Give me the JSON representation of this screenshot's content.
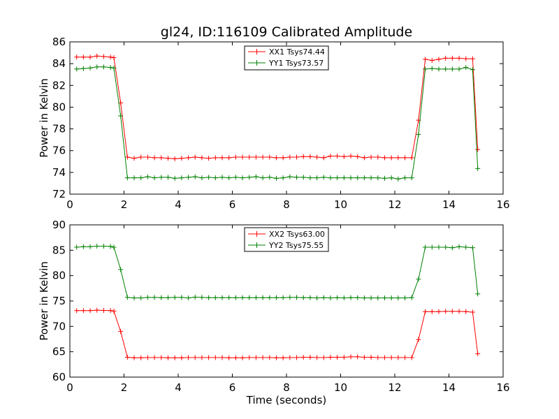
{
  "chart_data": [
    {
      "type": "line",
      "title": "gl24, ID:116109 Calibrated Amplitude",
      "xlabel": "",
      "ylabel": "Power in Kelvin",
      "xlim": [
        0,
        16
      ],
      "ylim": [
        72,
        86
      ],
      "xticks": [
        0,
        2,
        4,
        6,
        8,
        10,
        12,
        14,
        16
      ],
      "yticks": [
        72,
        74,
        76,
        78,
        80,
        82,
        84,
        86
      ],
      "legend_position": "top-center",
      "x": [
        0.25,
        0.5,
        0.75,
        1.0,
        1.25,
        1.5,
        1.625,
        1.875,
        2.125,
        2.375,
        2.625,
        2.875,
        3.125,
        3.375,
        3.625,
        3.875,
        4.125,
        4.375,
        4.625,
        4.875,
        5.125,
        5.375,
        5.625,
        5.875,
        6.125,
        6.375,
        6.625,
        6.875,
        7.125,
        7.375,
        7.625,
        7.875,
        8.125,
        8.375,
        8.625,
        8.875,
        9.125,
        9.375,
        9.625,
        9.875,
        10.125,
        10.375,
        10.625,
        10.875,
        11.125,
        11.375,
        11.625,
        11.875,
        12.125,
        12.375,
        12.625,
        12.875,
        13.125,
        13.375,
        13.625,
        13.875,
        14.125,
        14.375,
        14.625,
        14.875,
        15.0625
      ],
      "series": [
        {
          "name": "XX1 Tsys74.44",
          "color": "#ff0000",
          "values": [
            84.6,
            84.6,
            84.6,
            84.7,
            84.65,
            84.6,
            84.55,
            80.4,
            75.4,
            75.3,
            75.4,
            75.4,
            75.35,
            75.35,
            75.3,
            75.25,
            75.3,
            75.35,
            75.4,
            75.35,
            75.3,
            75.35,
            75.35,
            75.35,
            75.4,
            75.4,
            75.4,
            75.4,
            75.4,
            75.4,
            75.35,
            75.35,
            75.4,
            75.4,
            75.45,
            75.45,
            75.4,
            75.35,
            75.5,
            75.5,
            75.45,
            75.5,
            75.45,
            75.35,
            75.4,
            75.4,
            75.35,
            75.35,
            75.35,
            75.35,
            75.35,
            78.8,
            84.4,
            84.3,
            84.4,
            84.5,
            84.5,
            84.5,
            84.45,
            84.45,
            76.1
          ]
        },
        {
          "name": "YY1 Tsys73.57",
          "color": "#008000",
          "values": [
            83.5,
            83.55,
            83.6,
            83.7,
            83.7,
            83.65,
            83.6,
            79.2,
            73.5,
            73.5,
            73.5,
            73.6,
            73.5,
            73.55,
            73.55,
            73.45,
            73.5,
            73.55,
            73.6,
            73.5,
            73.55,
            73.5,
            73.55,
            73.5,
            73.55,
            73.5,
            73.55,
            73.6,
            73.5,
            73.55,
            73.45,
            73.5,
            73.6,
            73.55,
            73.55,
            73.5,
            73.5,
            73.55,
            73.5,
            73.5,
            73.5,
            73.5,
            73.5,
            73.5,
            73.5,
            73.5,
            73.45,
            73.5,
            73.4,
            73.5,
            73.5,
            77.5,
            83.5,
            83.55,
            83.5,
            83.5,
            83.5,
            83.5,
            83.65,
            83.45,
            74.35
          ]
        }
      ]
    },
    {
      "type": "line",
      "title": "",
      "xlabel": "Time (seconds)",
      "ylabel": "Power in Kelvin",
      "xlim": [
        0,
        16
      ],
      "ylim": [
        60,
        90
      ],
      "xticks": [
        0,
        2,
        4,
        6,
        8,
        10,
        12,
        14,
        16
      ],
      "yticks": [
        60,
        65,
        70,
        75,
        80,
        85,
        90
      ],
      "legend_position": "top-center",
      "x": [
        0.25,
        0.5,
        0.75,
        1.0,
        1.25,
        1.5,
        1.625,
        1.875,
        2.125,
        2.375,
        2.625,
        2.875,
        3.125,
        3.375,
        3.625,
        3.875,
        4.125,
        4.375,
        4.625,
        4.875,
        5.125,
        5.375,
        5.625,
        5.875,
        6.125,
        6.375,
        6.625,
        6.875,
        7.125,
        7.375,
        7.625,
        7.875,
        8.125,
        8.375,
        8.625,
        8.875,
        9.125,
        9.375,
        9.625,
        9.875,
        10.125,
        10.375,
        10.625,
        10.875,
        11.125,
        11.375,
        11.625,
        11.875,
        12.125,
        12.375,
        12.625,
        12.875,
        13.125,
        13.375,
        13.625,
        13.875,
        14.125,
        14.375,
        14.625,
        14.875,
        15.0625
      ],
      "series": [
        {
          "name": "XX2 Tsys63.00",
          "color": "#ff0000",
          "values": [
            73.1,
            73.1,
            73.1,
            73.2,
            73.15,
            73.1,
            73.0,
            69.0,
            63.9,
            63.8,
            63.8,
            63.85,
            63.85,
            63.85,
            63.8,
            63.8,
            63.8,
            63.85,
            63.85,
            63.85,
            63.85,
            63.85,
            63.85,
            63.8,
            63.8,
            63.8,
            63.85,
            63.85,
            63.85,
            63.85,
            63.8,
            63.8,
            63.85,
            63.85,
            63.9,
            63.9,
            63.85,
            63.85,
            63.9,
            63.9,
            63.9,
            64.0,
            64.0,
            63.9,
            63.9,
            63.85,
            63.85,
            63.85,
            63.85,
            63.85,
            63.85,
            67.4,
            72.9,
            72.9,
            72.9,
            72.95,
            72.95,
            72.95,
            72.9,
            72.8,
            64.6
          ]
        },
        {
          "name": "YY2 Tsys75.55",
          "color": "#008000",
          "values": [
            85.6,
            85.7,
            85.7,
            85.8,
            85.8,
            85.75,
            85.6,
            81.2,
            75.7,
            75.6,
            75.6,
            75.7,
            75.7,
            75.65,
            75.65,
            75.7,
            75.7,
            75.6,
            75.75,
            75.7,
            75.65,
            75.65,
            75.65,
            75.65,
            75.65,
            75.65,
            75.65,
            75.65,
            75.65,
            75.65,
            75.65,
            75.65,
            75.7,
            75.7,
            75.65,
            75.65,
            75.6,
            75.65,
            75.6,
            75.65,
            75.6,
            75.65,
            75.65,
            75.6,
            75.6,
            75.6,
            75.6,
            75.6,
            75.6,
            75.6,
            75.65,
            79.3,
            85.6,
            85.6,
            85.6,
            85.6,
            85.5,
            85.7,
            85.6,
            85.5,
            76.4
          ]
        }
      ]
    }
  ]
}
